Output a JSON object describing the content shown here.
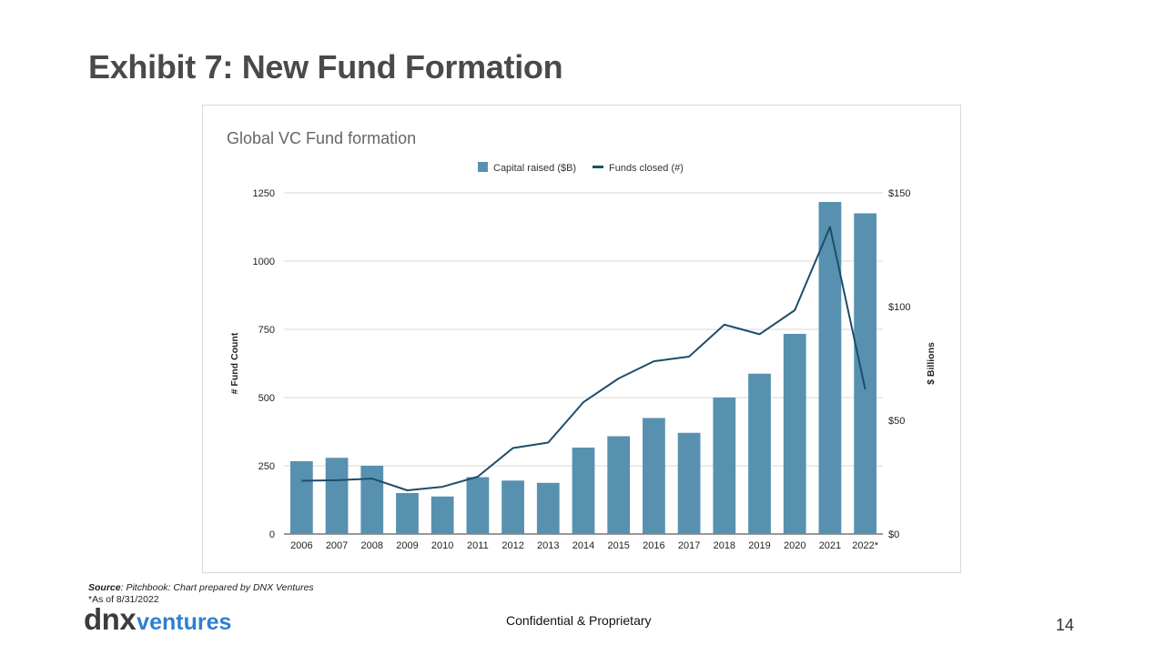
{
  "slide": {
    "title": "Exhibit 7: New Fund Formation",
    "source_label": "Source",
    "source_text": ": Pitchbook: Chart prepared by DNX Ventures",
    "asof": "*As of 8/31/2022",
    "footer": "Confidential & Proprietary",
    "page_number": "14",
    "logo_part1": "dnx",
    "logo_part2": "ventures"
  },
  "colors": {
    "bar": "#5891b0",
    "line": "#1e4d6b",
    "grid": "#d9d9d9",
    "title": "#4a4a4a",
    "logo_accent": "#2f7fd1"
  },
  "chart_data": {
    "type": "bar",
    "title": "Global VC Fund formation",
    "categories": [
      "2006",
      "2007",
      "2008",
      "2009",
      "2010",
      "2011",
      "2012",
      "2013",
      "2014",
      "2015",
      "2016",
      "2017",
      "2018",
      "2019",
      "2020",
      "2021",
      "2022*"
    ],
    "series": [
      {
        "name": "Capital raised ($B)",
        "type": "bar",
        "axis": "right",
        "values": [
          32,
          33.5,
          30,
          18,
          16.5,
          25,
          23.5,
          22.5,
          38,
          43,
          51,
          44.5,
          60,
          70.5,
          88,
          146,
          141
        ]
      },
      {
        "name": "Funds closed (#)",
        "type": "line",
        "axis": "left",
        "values": [
          195,
          197,
          203,
          160,
          173,
          210,
          315,
          335,
          483,
          570,
          633,
          650,
          767,
          732,
          820,
          1125,
          530
        ]
      }
    ],
    "ylabel_left": "# Fund Count",
    "ylabel_right": "$ Billions",
    "ylim_left": [
      0,
      1250
    ],
    "ylim_right": [
      0,
      150
    ],
    "yticks_left": [
      "0",
      "250",
      "500",
      "750",
      "1000",
      "1250"
    ],
    "yticks_right": [
      "$0",
      "$50",
      "$100",
      "$150"
    ],
    "legend_position": "top-center",
    "grid": true
  }
}
